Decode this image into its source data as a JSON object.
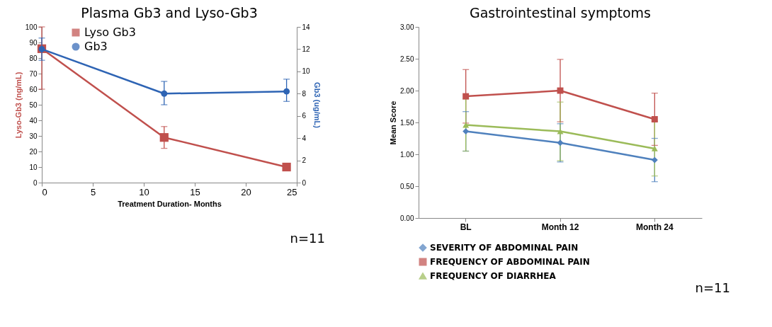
{
  "chart_data": [
    {
      "type": "line",
      "title": "Plasma Gb3 and Lyso-Gb3",
      "xlabel": "Treatment Duration- Months",
      "ylabel": "Lyso-Gb3 (ng/mL)",
      "y2label": "Gb3 (ug/mL)",
      "x": [
        0,
        12,
        24
      ],
      "xlim": [
        0,
        25
      ],
      "xticks": [
        0,
        5,
        10,
        15,
        20,
        25
      ],
      "ylim": [
        0,
        100
      ],
      "yticks": [
        0,
        10,
        20,
        30,
        40,
        50,
        60,
        70,
        80,
        90,
        100
      ],
      "y2lim": [
        0,
        14
      ],
      "y2ticks": [
        0,
        2,
        4,
        6,
        8,
        10,
        12,
        14
      ],
      "series": [
        {
          "name": "Lyso Gb3",
          "color": "#c0504d",
          "marker": "square",
          "values": [
            86,
            29,
            10
          ],
          "errors": [
            [
              60,
              100
            ],
            7,
            null
          ]
        },
        {
          "name": "Gb3",
          "color": "#2e64b4",
          "marker": "circle",
          "axis": "y2",
          "values": [
            12,
            8.0,
            8.2
          ],
          "errors": [
            1,
            [
              7,
              9.1
            ],
            [
              7.3,
              9.3
            ]
          ]
        }
      ],
      "legend": "top left",
      "annotations": [
        "n=11"
      ]
    },
    {
      "type": "line",
      "title": "Gastrointestinal symptoms",
      "ylabel": "Mean Score",
      "categories": [
        "BL",
        "Month 12",
        "Month 24"
      ],
      "ylim": [
        0,
        3
      ],
      "yticks": [
        {
          "value": 0,
          "label": "0.00"
        },
        {
          "value": 0.5,
          "label": "0.50"
        },
        {
          "value": 1,
          "label": "1.00"
        },
        {
          "value": 1.5,
          "label": "1.50"
        },
        {
          "value": 2,
          "label": "2.00"
        },
        {
          "value": 2.5,
          "label": "2.50"
        },
        {
          "value": 3,
          "label": "3.00"
        }
      ],
      "series": [
        {
          "name": "SEVERITY OF ABDOMINAL PAIN",
          "color": "#4f81bd",
          "marker": "diamond",
          "values": [
            1.36,
            1.18,
            0.91
          ],
          "errors": [
            0.31,
            0.3,
            0.34
          ]
        },
        {
          "name": "FREQUENCY OF ABDOMINAL PAIN",
          "color": "#c0504d",
          "marker": "square",
          "values": [
            1.91,
            2.0,
            1.55
          ],
          "errors": [
            0.42,
            0.49,
            0.41
          ]
        },
        {
          "name": "FREQUENCY OF DIARRHEA",
          "color": "#9bbb59",
          "marker": "triangle",
          "values": [
            1.46,
            1.36,
            1.09
          ],
          "errors": [
            0.41,
            0.46,
            0.43
          ]
        }
      ],
      "legend": "bottom",
      "annotations": [
        "n=11"
      ]
    }
  ]
}
